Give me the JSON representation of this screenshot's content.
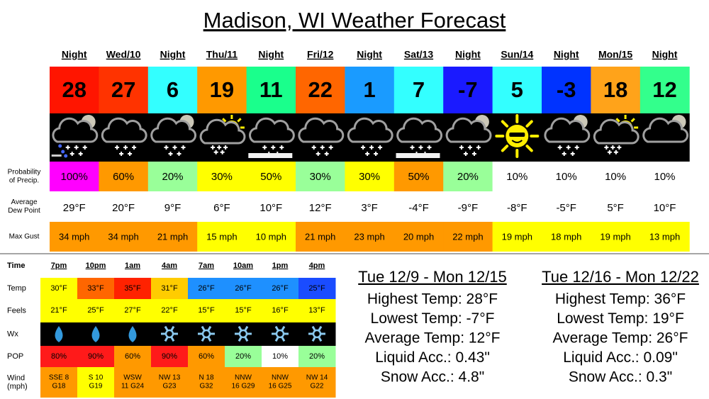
{
  "title": "Madison, WI Weather Forecast",
  "forecast": {
    "periods": [
      "Night",
      "Wed/10",
      "Night",
      "Thu/11",
      "Night",
      "Fri/12",
      "Night",
      "Sat/13",
      "Night",
      "Sun/14",
      "Night",
      "Mon/15",
      "Night"
    ],
    "temps": {
      "values": [
        28,
        27,
        6,
        19,
        11,
        22,
        1,
        7,
        -7,
        5,
        -3,
        18,
        12
      ],
      "colors": [
        "#ff1500",
        "#ff3300",
        "#33ffff",
        "#ff9900",
        "#1aff8c",
        "#ff6600",
        "#1a9bff",
        "#33ffff",
        "#1a1aff",
        "#33ffff",
        "#0033ff",
        "#ffa31a",
        "#33ff8c"
      ]
    },
    "pop": {
      "label": [
        "Probability",
        "of Precip."
      ],
      "values": [
        "100%",
        "60%",
        "20%",
        "30%",
        "50%",
        "30%",
        "30%",
        "50%",
        "20%",
        "10%",
        "10%",
        "10%",
        "10%"
      ],
      "colors": [
        "#ff00ff",
        "#ff9900",
        "#99ff99",
        "#ffff00",
        "#ffff00",
        "#99ff99",
        "#ffff00",
        "#ff9900",
        "#99ff99",
        "#ffffff",
        "#ffffff",
        "#ffffff",
        "#ffffff"
      ]
    },
    "dew": {
      "label": [
        "Average",
        "Dew Point"
      ],
      "values": [
        "29°F",
        "20°F",
        "9°F",
        "6°F",
        "10°F",
        "12°F",
        "3°F",
        "-4°F",
        "-9°F",
        "-8°F",
        "-5°F",
        "5°F",
        "10°F"
      ]
    },
    "gust": {
      "label": [
        "Max Gust"
      ],
      "values": [
        "34 mph",
        "34 mph",
        "21 mph",
        "15 mph",
        "10 mph",
        "21 mph",
        "23 mph",
        "20 mph",
        "22 mph",
        "19 mph",
        "18 mph",
        "19 mph",
        "13 mph"
      ],
      "colors": [
        "#ff9900",
        "#ff9900",
        "#ff9900",
        "#ffff00",
        "#ffff00",
        "#ff9900",
        "#ff9900",
        "#ff9900",
        "#ff9900",
        "#ffff00",
        "#ffff00",
        "#ffff00",
        "#ffff00"
      ]
    }
  },
  "hourly": {
    "header": "Time",
    "times": [
      "7pm",
      "10pm",
      "1am",
      "4am",
      "7am",
      "10am",
      "1pm",
      "4pm"
    ],
    "temp": {
      "label": [
        "Temp"
      ],
      "values": [
        "30°F",
        "33°F",
        "35°F",
        "31°F",
        "26°F",
        "26°F",
        "26°F",
        "25°F"
      ],
      "colors": [
        "#ffff00",
        "#ff6600",
        "#ff2200",
        "#ffcc00",
        "#1e90ff",
        "#1e90ff",
        "#1e90ff",
        "#1a4cff"
      ]
    },
    "feels": {
      "label": [
        "Feels"
      ],
      "values": [
        "21°F",
        "25°F",
        "27°F",
        "22°F",
        "15°F",
        "15°F",
        "16°F",
        "13°F"
      ],
      "color": "#ffff00"
    },
    "wx": {
      "label": [
        "Wx"
      ]
    },
    "pop": {
      "label": [
        "POP"
      ],
      "values": [
        "80%",
        "90%",
        "60%",
        "90%",
        "60%",
        "20%",
        "10%",
        "20%"
      ],
      "colors": [
        "#ff1a1a",
        "#ff1a1a",
        "#ff9900",
        "#ff1a1a",
        "#ff9900",
        "#99ff99",
        "#ffffff",
        "#99ff99"
      ]
    },
    "wind": {
      "label": [
        "Wind",
        "(mph)"
      ],
      "values": [
        [
          "SSE 8",
          "G18"
        ],
        [
          "S 10",
          "G19"
        ],
        [
          "WSW",
          "11 G24"
        ],
        [
          "NW 13",
          "G23"
        ],
        [
          "N 18",
          "G32"
        ],
        [
          "NNW",
          "16 G29"
        ],
        [
          "NNW",
          "16 G25"
        ],
        [
          "NW 14",
          "G22"
        ]
      ],
      "colors": [
        "#ff9900",
        "#ffff00",
        "#ff9900",
        "#ff9900",
        "#ff9900",
        "#ff9900",
        "#ff9900",
        "#ff9900"
      ]
    }
  },
  "summaries": [
    {
      "heading": "Tue 12/9 - Mon 12/15",
      "lines": [
        "Highest Temp: 28°F",
        "Lowest Temp: -7°F",
        "Average Temp: 12°F",
        "Liquid Acc.: 0.43\"",
        "Snow Acc.: 4.8\""
      ]
    },
    {
      "heading": "Tue 12/16 - Mon 12/22",
      "lines": [
        "Highest Temp: 36°F",
        "Lowest Temp: 19°F",
        "Average Temp: 26°F",
        "Liquid Acc.: 0.09\"",
        "Snow Acc.: 0.3\""
      ]
    }
  ]
}
